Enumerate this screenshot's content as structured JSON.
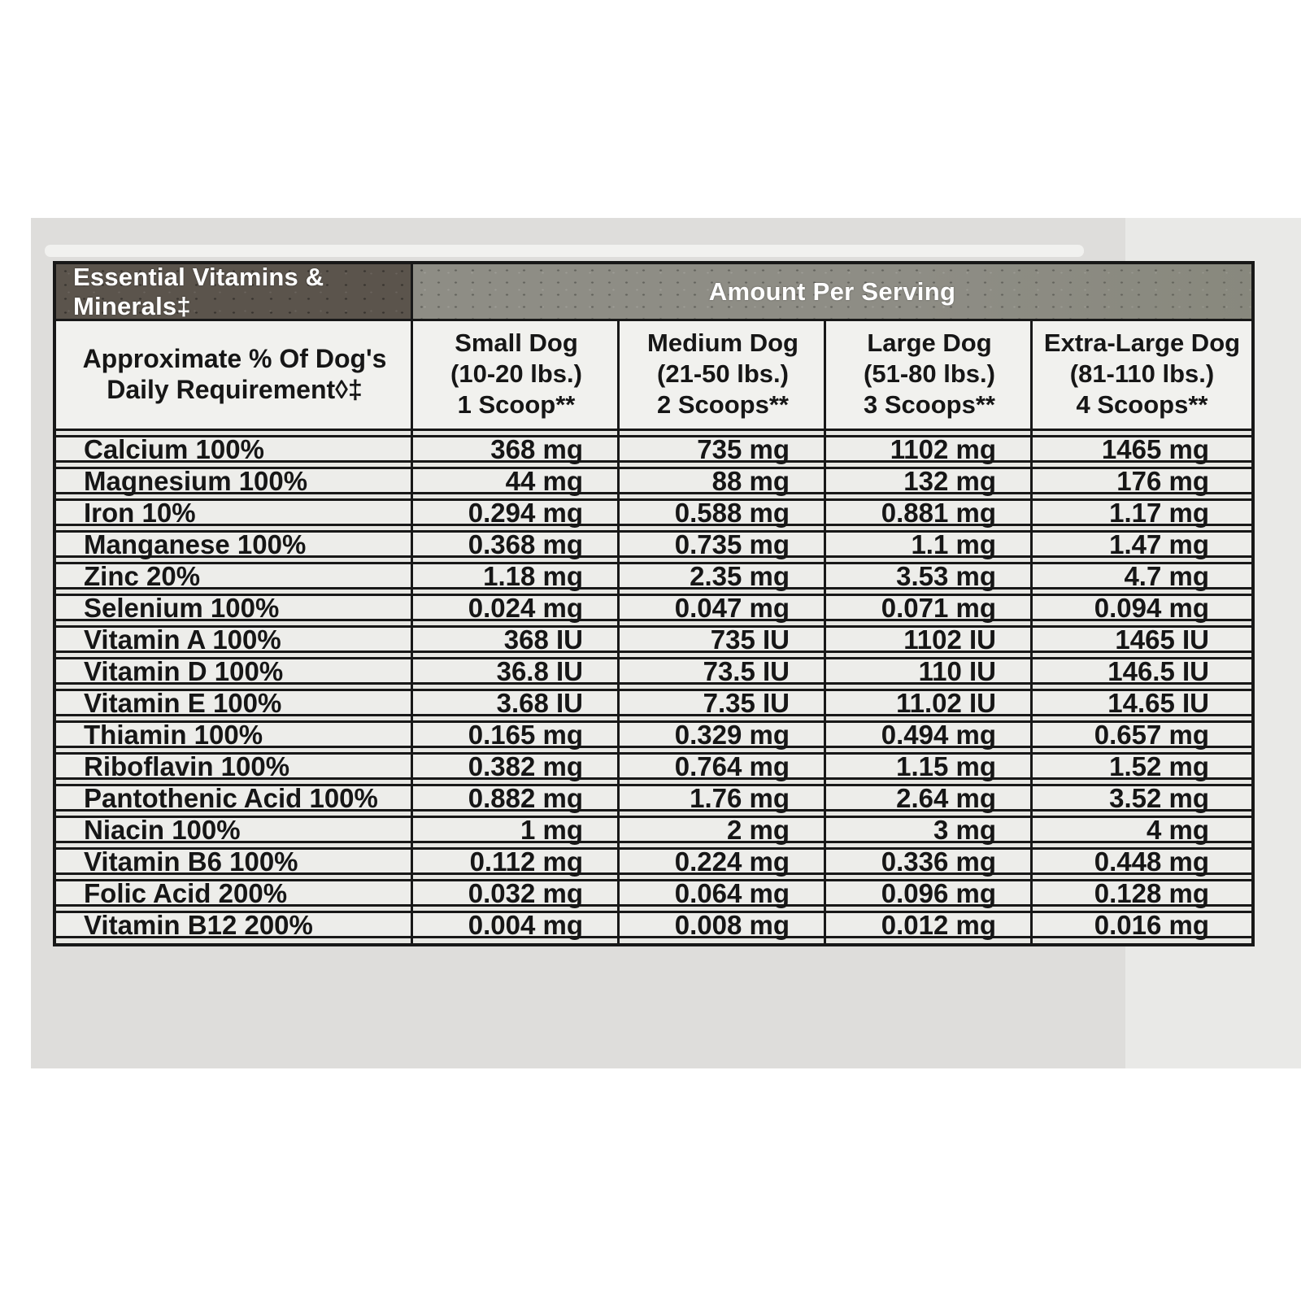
{
  "table": {
    "title": "Essential Vitamins & Minerals‡",
    "amount_header": "Amount Per Serving",
    "row_header": "Approximate % Of Dog's\nDaily Requirement◊‡",
    "columns": [
      {
        "label": "Small Dog\n(10-20 lbs.)\n1 Scoop**"
      },
      {
        "label": "Medium Dog\n(21-50 lbs.)\n2 Scoops**"
      },
      {
        "label": "Large Dog\n(51-80 lbs.)\n3 Scoops**"
      },
      {
        "label": "Extra-Large Dog\n(81-110 lbs.)\n4 Scoops**"
      }
    ],
    "rows": [
      {
        "name": "Calcium 100%",
        "values": [
          "368 mg",
          "735 mg",
          "1102 mg",
          "1465 mg"
        ]
      },
      {
        "name": "Magnesium 100%",
        "values": [
          "44 mg",
          "88 mg",
          "132 mg",
          "176 mg"
        ]
      },
      {
        "name": "Iron 10%",
        "values": [
          "0.294 mg",
          "0.588 mg",
          "0.881 mg",
          "1.17 mg"
        ]
      },
      {
        "name": "Manganese 100%",
        "values": [
          "0.368 mg",
          "0.735 mg",
          "1.1 mg",
          "1.47 mg"
        ]
      },
      {
        "name": "Zinc 20%",
        "values": [
          "1.18 mg",
          "2.35 mg",
          "3.53 mg",
          "4.7 mg"
        ]
      },
      {
        "name": "Selenium 100%",
        "values": [
          "0.024 mg",
          "0.047 mg",
          "0.071 mg",
          "0.094 mg"
        ]
      },
      {
        "name": "Vitamin A 100%",
        "values": [
          "368 IU",
          "735 IU",
          "1102 IU",
          "1465 IU"
        ]
      },
      {
        "name": "Vitamin D 100%",
        "values": [
          "36.8 IU",
          "73.5 IU",
          "110 IU",
          "146.5 IU"
        ]
      },
      {
        "name": "Vitamin E 100%",
        "values": [
          "3.68 IU",
          "7.35 IU",
          "11.02 IU",
          "14.65 IU"
        ]
      },
      {
        "name": "Thiamin 100%",
        "values": [
          "0.165 mg",
          "0.329 mg",
          "0.494 mg",
          "0.657 mg"
        ]
      },
      {
        "name": "Riboflavin 100%",
        "values": [
          "0.382 mg",
          "0.764 mg",
          "1.15 mg",
          "1.52 mg"
        ]
      },
      {
        "name": "Pantothenic Acid 100%",
        "values": [
          "0.882 mg",
          "1.76 mg",
          "2.64 mg",
          "3.52 mg"
        ]
      },
      {
        "name": "Niacin 100%",
        "values": [
          "1 mg",
          "2 mg",
          "3 mg",
          "4 mg"
        ]
      },
      {
        "name": "Vitamin B6 100%",
        "values": [
          "0.112 mg",
          "0.224 mg",
          "0.336 mg",
          "0.448 mg"
        ]
      },
      {
        "name": "Folic Acid 200%",
        "values": [
          "0.032 mg",
          "0.064 mg",
          "0.096 mg",
          "0.128 mg"
        ]
      },
      {
        "name": "Vitamin B12 200%",
        "values": [
          "0.004 mg",
          "0.008 mg",
          "0.012 mg",
          "0.016 mg"
        ]
      }
    ]
  },
  "colors": {
    "header_dark": "#5b544c",
    "header_gray": "#8e8d85",
    "border": "#181818",
    "row_bg": "#ededea",
    "subheader_bg": "#f1f1ee",
    "panel": "#dedddb",
    "panel_light": "#e9e9e7",
    "page": "#ffffff"
  }
}
